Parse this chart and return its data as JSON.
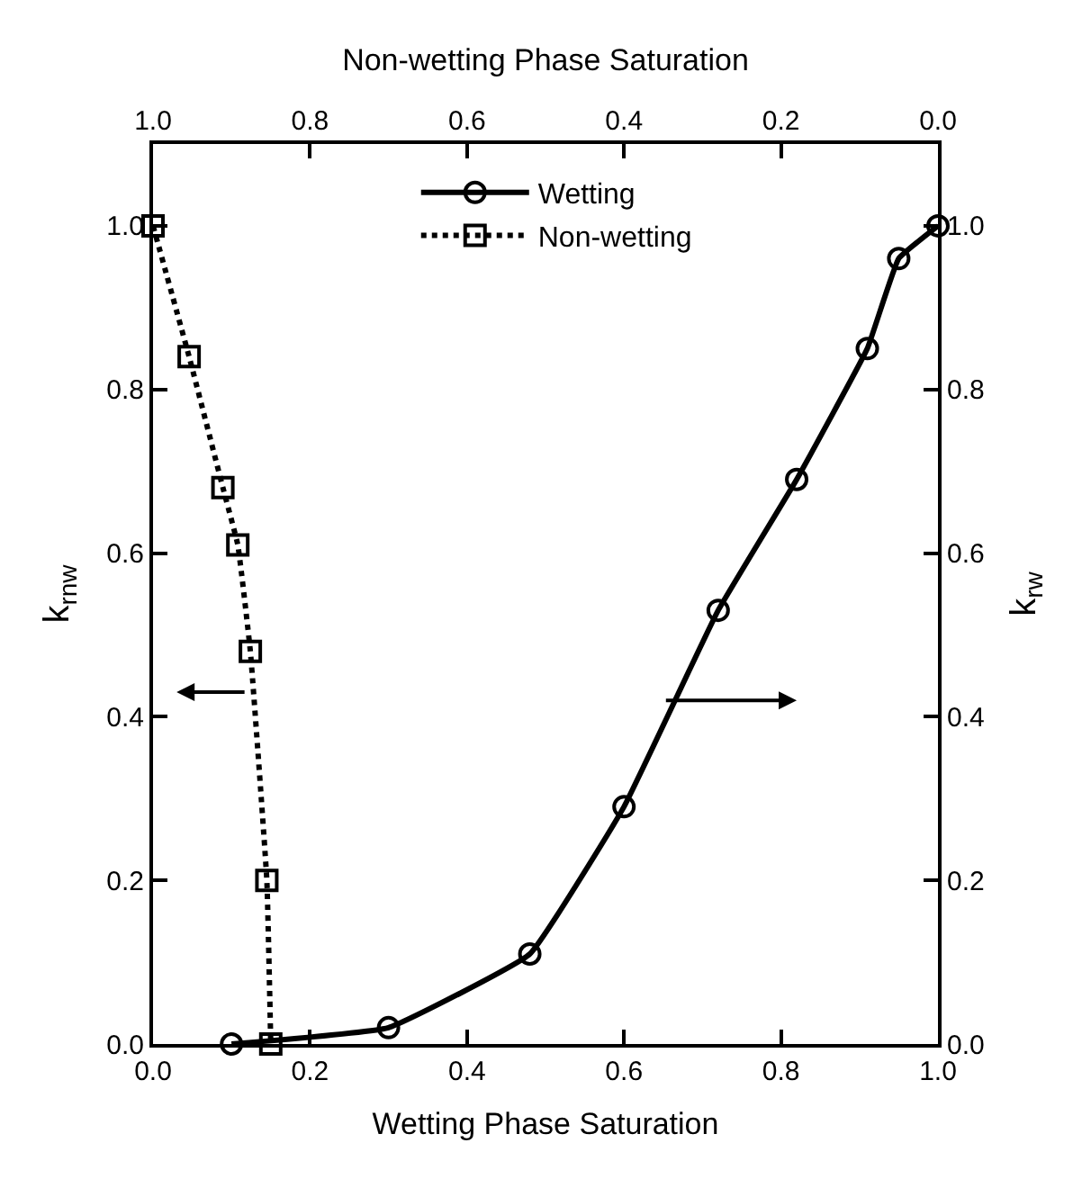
{
  "chart_data": {
    "type": "line",
    "xlabel": "Wetting Phase Saturation",
    "x2label": "Non-wetting Phase Saturation",
    "ylabel": "k$_{rnw}$",
    "y2label": "k$_{rw}$",
    "xlim": [
      0,
      1
    ],
    "xticks": [
      {
        "value": 0,
        "label": "0.0"
      },
      0.2,
      0.4,
      0.6,
      0.8,
      {
        "value": 1,
        "label": "1.0"
      }
    ],
    "x2lim": [
      1,
      0
    ],
    "x2ticks": [
      {
        "value": 1,
        "label": "1.0"
      },
      0.8,
      0.6,
      0.4,
      0.2,
      {
        "value": 0,
        "label": "0.0"
      }
    ],
    "ylim": [
      0,
      1.1
    ],
    "yticks": [
      {
        "value": 0,
        "label": "0.0"
      },
      0.2,
      0.4,
      0.6,
      0.8,
      {
        "value": 1,
        "label": "1.0"
      }
    ],
    "y2lim": [
      0,
      1.1
    ],
    "y2ticks": [
      {
        "value": 0,
        "label": "0.0"
      },
      0.2,
      0.4,
      0.6,
      0.8,
      {
        "value": 1,
        "label": "1.0"
      }
    ],
    "legend": "top",
    "series": [
      {
        "name": "Wetting",
        "color": "#000000",
        "axis": "y2",
        "marker": "circle",
        "line_style": "solid",
        "x": [
          0.1,
          0.3,
          0.48,
          0.6,
          0.72,
          0.82,
          0.91,
          0.95,
          1.0
        ],
        "values": [
          0.0,
          0.02,
          0.11,
          0.29,
          0.53,
          0.69,
          0.85,
          0.96,
          1.0
        ]
      },
      {
        "name": "Non-wetting",
        "color": "#000000",
        "axis": "y",
        "marker": "square",
        "line_style": "dotted",
        "x": [
          0.0,
          0.046,
          0.089,
          0.108,
          0.124,
          0.145,
          0.15
        ],
        "values": [
          1.0,
          0.84,
          0.68,
          0.61,
          0.48,
          0.2,
          0.0
        ]
      }
    ]
  }
}
